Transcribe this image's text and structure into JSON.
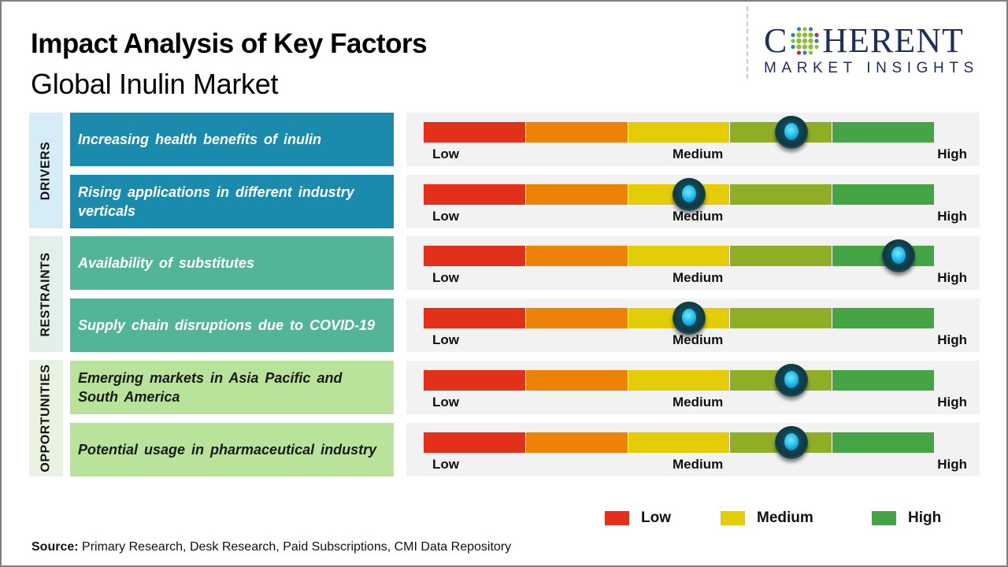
{
  "header": {
    "title": "Impact Analysis of Key Factors",
    "subtitle": "Global Inulin Market"
  },
  "logo": {
    "word_left": "C",
    "word_right": "HERENT",
    "tagline": "MARKET INSIGHTS",
    "globe_icon": "dotted-globe-icon"
  },
  "scale_labels": {
    "low": "Low",
    "medium": "Medium",
    "high": "High"
  },
  "segment_colors": [
    "#e2301b",
    "#ec8206",
    "#e4cc07",
    "#8fae26",
    "#45a544"
  ],
  "categories": [
    {
      "name": "DRIVERS",
      "factors": [
        {
          "label": "Increasing health benefits of inulin",
          "impact": 0.72
        },
        {
          "label": "Rising applications in different industry verticals",
          "impact": 0.52
        }
      ]
    },
    {
      "name": "RESTRAINTS",
      "factors": [
        {
          "label": "Availability of substitutes",
          "impact": 0.93
        },
        {
          "label": "Supply chain disruptions due to COVID-19",
          "impact": 0.52
        }
      ]
    },
    {
      "name": "OPPORTUNITIES",
      "factors": [
        {
          "label": "Emerging markets in Asia Pacific and South America",
          "impact": 0.72
        },
        {
          "label": "Potential usage in pharmaceutical industry",
          "impact": 0.72
        }
      ]
    }
  ],
  "legend": [
    {
      "label": "Low",
      "color": "#e2301b"
    },
    {
      "label": "Medium",
      "color": "#e4cc07"
    },
    {
      "label": "High",
      "color": "#45a544"
    }
  ],
  "source": {
    "prefix": "Source:",
    "text": " Primary Research, Desk Research, Paid Subscriptions, CMI Data Repository"
  }
}
